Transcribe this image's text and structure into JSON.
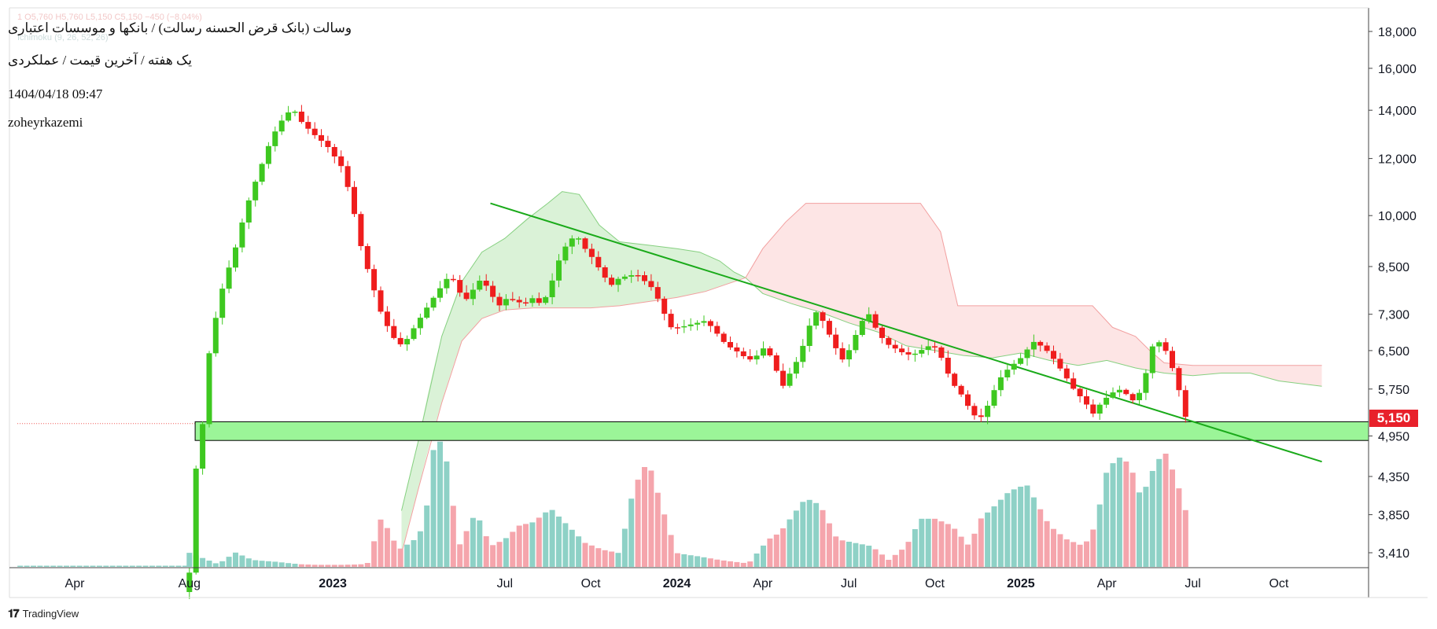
{
  "header": {
    "title": "وسالت (بانک قرض الحسنه رسالت) / بانکها و موسسات اعتباری",
    "subtitle": "یک هفته / آخرین قیمت / عملکردی",
    "timestamp": "1404/04/18 09:47",
    "author": "zoheyrkazemi",
    "ohlc_line": "1  O5,760  H5,760  L5,150  C5,150  −450 (−8.04%)",
    "indicator_line": "Ichimoku (9, 26, 52, 26)"
  },
  "brand": {
    "name": "TradingView",
    "icon": "tradingview-logo-icon"
  },
  "colors": {
    "up": "#3ec820",
    "down": "#ef1d1d",
    "vol_up": "#8ed1c6",
    "vol_down": "#f5a5ac",
    "trendline": "#1aaa1a",
    "support_zone": "#9bf598",
    "cloud_bull": "#cdeec9",
    "cloud_bear": "#fcdcdc",
    "price_tag": "#e8212b"
  },
  "current_price_label": "5,150",
  "chart_data": {
    "type": "candlestick",
    "timeframe": "1W",
    "yscale": "log",
    "ylim": [
      3100,
      19000
    ],
    "xrange_months": [
      -2,
      34
    ],
    "yticks": [
      {
        "value": 18000,
        "label": "18,000"
      },
      {
        "value": 16000,
        "label": "16,000"
      },
      {
        "value": 14000,
        "label": "14,000"
      },
      {
        "value": 12000,
        "label": "12,000"
      },
      {
        "value": 10000,
        "label": "10,000"
      },
      {
        "value": 8500,
        "label": "8,500"
      },
      {
        "value": 7300,
        "label": "7,300"
      },
      {
        "value": 6500,
        "label": "6,500"
      },
      {
        "value": 5750,
        "label": "5,750"
      },
      {
        "value": 4950,
        "label": "4,950"
      },
      {
        "value": 4350,
        "label": "4,350"
      },
      {
        "value": 3850,
        "label": "3,850"
      },
      {
        "value": 3410,
        "label": "3,410"
      }
    ],
    "xticks": [
      {
        "label": "Apr",
        "month": 0,
        "bold": false
      },
      {
        "label": "Aug",
        "month": 4,
        "bold": false
      },
      {
        "label": "2023",
        "month": 9,
        "bold": true
      },
      {
        "label": "Jul",
        "month": 15,
        "bold": false
      },
      {
        "label": "Oct",
        "month": 18,
        "bold": false
      },
      {
        "label": "2024",
        "month": 21,
        "bold": true
      },
      {
        "label": "Apr",
        "month": 24,
        "bold": false
      },
      {
        "label": "Jul",
        "month": 27,
        "bold": false
      },
      {
        "label": "Oct",
        "month": 30,
        "bold": false
      },
      {
        "label": "2025",
        "month": 33,
        "bold": true
      },
      {
        "label": "Apr",
        "month": 36,
        "bold": false
      },
      {
        "label": "Jul",
        "month": 39,
        "bold": false
      },
      {
        "label": "Oct",
        "month": 42,
        "bold": false
      }
    ],
    "price_path": [
      [
        4.0,
        3200
      ],
      [
        4.0,
        4000
      ],
      [
        4.4,
        4800
      ],
      [
        4.7,
        6500
      ],
      [
        5.1,
        7800
      ],
      [
        5.6,
        9000
      ],
      [
        6.0,
        10300
      ],
      [
        6.5,
        11700
      ],
      [
        6.9,
        12900
      ],
      [
        7.3,
        13700
      ],
      [
        7.6,
        14100
      ],
      [
        7.9,
        13500
      ],
      [
        8.3,
        13000
      ],
      [
        8.8,
        12500
      ],
      [
        9.3,
        11700
      ],
      [
        9.6,
        10700
      ],
      [
        10.0,
        9000
      ],
      [
        10.3,
        8200
      ],
      [
        10.7,
        7300
      ],
      [
        11.0,
        6900
      ],
      [
        11.3,
        6600
      ],
      [
        11.6,
        6750
      ],
      [
        13.1,
        8300
      ],
      [
        13.3,
        8000
      ],
      [
        13.6,
        7600
      ],
      [
        13.9,
        7900
      ],
      [
        14.2,
        8200
      ],
      [
        14.5,
        7800
      ],
      [
        14.8,
        7500
      ],
      [
        15.1,
        7700
      ],
      [
        15.4,
        7600
      ],
      [
        15.7,
        7550
      ],
      [
        16.0,
        7700
      ],
      [
        16.3,
        7500
      ],
      [
        16.6,
        8000
      ],
      [
        16.9,
        8700
      ],
      [
        17.2,
        9200
      ],
      [
        17.5,
        9400
      ],
      [
        17.8,
        9000
      ],
      [
        18.1,
        8700
      ],
      [
        18.4,
        8300
      ],
      [
        18.7,
        8000
      ],
      [
        19.0,
        8200
      ],
      [
        19.3,
        8250
      ],
      [
        19.6,
        8300
      ],
      [
        19.9,
        8100
      ],
      [
        20.2,
        7900
      ],
      [
        20.5,
        7400
      ],
      [
        20.8,
        7000
      ],
      [
        21.1,
        7000
      ],
      [
        21.4,
        7050
      ],
      [
        21.7,
        7100
      ],
      [
        22.0,
        7150
      ],
      [
        22.3,
        6950
      ],
      [
        22.6,
        6700
      ],
      [
        22.9,
        6550
      ],
      [
        23.2,
        6450
      ],
      [
        23.5,
        6300
      ],
      [
        23.8,
        6400
      ],
      [
        24.1,
        6600
      ],
      [
        24.4,
        6200
      ],
      [
        24.7,
        5800
      ],
      [
        25.0,
        6100
      ],
      [
        25.3,
        6400
      ],
      [
        25.6,
        7000
      ],
      [
        25.9,
        7400
      ],
      [
        26.2,
        7000
      ],
      [
        26.5,
        6600
      ],
      [
        26.8,
        6300
      ],
      [
        27.1,
        6600
      ],
      [
        27.4,
        7100
      ],
      [
        27.7,
        7300
      ],
      [
        28.0,
        6900
      ],
      [
        28.3,
        6650
      ],
      [
        28.6,
        6550
      ],
      [
        28.9,
        6450
      ],
      [
        29.2,
        6400
      ],
      [
        29.5,
        6500
      ],
      [
        29.8,
        6600
      ],
      [
        30.1,
        6550
      ],
      [
        30.4,
        6100
      ],
      [
        30.7,
        5800
      ],
      [
        31.0,
        5600
      ],
      [
        31.3,
        5300
      ],
      [
        31.6,
        5250
      ],
      [
        31.9,
        5500
      ],
      [
        32.2,
        5900
      ],
      [
        32.5,
        6100
      ],
      [
        32.8,
        6250
      ],
      [
        33.1,
        6400
      ],
      [
        33.4,
        6700
      ],
      [
        33.7,
        6600
      ],
      [
        34.0,
        6450
      ],
      [
        34.3,
        6200
      ],
      [
        34.6,
        5950
      ],
      [
        34.9,
        5700
      ],
      [
        35.2,
        5550
      ],
      [
        35.5,
        5300
      ],
      [
        35.8,
        5500
      ],
      [
        36.1,
        5650
      ],
      [
        36.4,
        5750
      ],
      [
        36.7,
        5650
      ],
      [
        37.0,
        5500
      ],
      [
        37.3,
        5900
      ],
      [
        37.6,
        6600
      ],
      [
        37.9,
        6700
      ],
      [
        38.2,
        6300
      ],
      [
        38.5,
        5760
      ],
      [
        38.8,
        5150
      ]
    ],
    "volume_path": [
      [
        4.0,
        4.1
      ],
      [
        5.0,
        0.8
      ],
      [
        5.6,
        4.2
      ],
      [
        6.2,
        2.0
      ],
      [
        7.0,
        1.5
      ],
      [
        7.8,
        0.8
      ],
      [
        8.4,
        0.6
      ],
      [
        9.4,
        0.6
      ],
      [
        10.2,
        0.8
      ],
      [
        10.7,
        14.5
      ],
      [
        11.3,
        5.0
      ],
      [
        11.8,
        7.5
      ],
      [
        12.2,
        12.0
      ],
      [
        12.6,
        40.0
      ],
      [
        13.0,
        30.0
      ],
      [
        13.4,
        6.0
      ],
      [
        14.0,
        16.0
      ],
      [
        14.5,
        6.0
      ],
      [
        15.0,
        8.0
      ],
      [
        15.5,
        12.0
      ],
      [
        16.0,
        13.0
      ],
      [
        16.6,
        17.0
      ],
      [
        17.2,
        12.0
      ],
      [
        17.8,
        7.0
      ],
      [
        18.4,
        5.0
      ],
      [
        19.0,
        4.0
      ],
      [
        19.5,
        23.0
      ],
      [
        20.0,
        31.0
      ],
      [
        20.5,
        17.0
      ],
      [
        21.0,
        4.0
      ],
      [
        21.8,
        3.0
      ],
      [
        22.5,
        2.0
      ],
      [
        23.5,
        1.0
      ],
      [
        24.2,
        8.0
      ],
      [
        24.6,
        10.0
      ],
      [
        25.0,
        14.5
      ],
      [
        25.5,
        20.0
      ],
      [
        26.0,
        18.0
      ],
      [
        26.6,
        8.0
      ],
      [
        27.2,
        7.0
      ],
      [
        27.8,
        6.0
      ],
      [
        28.4,
        2.0
      ],
      [
        29.0,
        6.0
      ],
      [
        29.5,
        14.0
      ],
      [
        30.0,
        14.0
      ],
      [
        30.6,
        12.0
      ],
      [
        31.2,
        6.0
      ],
      [
        31.6,
        14.0
      ],
      [
        32.0,
        17.0
      ],
      [
        32.6,
        22.0
      ],
      [
        33.2,
        24.0
      ],
      [
        33.6,
        18.0
      ],
      [
        34.0,
        12.0
      ],
      [
        34.6,
        8.0
      ],
      [
        35.2,
        6.0
      ],
      [
        35.6,
        12.0
      ],
      [
        36.0,
        28.0
      ],
      [
        36.4,
        32.0
      ],
      [
        36.8,
        30.0
      ],
      [
        37.2,
        20.0
      ],
      [
        37.6,
        28.0
      ],
      [
        38.0,
        34.0
      ],
      [
        38.4,
        26.0
      ],
      [
        38.8,
        15.0
      ]
    ],
    "ichimoku_span_a": [
      [
        11.4,
        3900
      ],
      [
        12.0,
        4900
      ],
      [
        12.8,
        6800
      ],
      [
        13.5,
        8100
      ],
      [
        14.2,
        8900
      ],
      [
        15.0,
        9300
      ],
      [
        15.8,
        9900
      ],
      [
        16.5,
        10400
      ],
      [
        17.0,
        10800
      ],
      [
        17.6,
        10700
      ],
      [
        18.3,
        9700
      ],
      [
        19.0,
        9200
      ],
      [
        20.0,
        9100
      ],
      [
        21.0,
        9000
      ],
      [
        21.8,
        8900
      ],
      [
        22.5,
        8650
      ],
      [
        23.0,
        8350
      ],
      [
        23.4,
        8200
      ],
      [
        24.0,
        7800
      ],
      [
        25.0,
        7550
      ],
      [
        26.0,
        7350
      ],
      [
        27.0,
        7100
      ],
      [
        28.0,
        6900
      ],
      [
        29.0,
        6600
      ],
      [
        30.0,
        6500
      ],
      [
        31.0,
        6400
      ],
      [
        32.0,
        6350
      ],
      [
        33.0,
        6450
      ],
      [
        34.0,
        6300
      ],
      [
        35.0,
        6200
      ],
      [
        36.0,
        6300
      ],
      [
        37.0,
        6150
      ],
      [
        38.0,
        6050
      ],
      [
        39.0,
        6000
      ],
      [
        40.0,
        6050
      ],
      [
        41.0,
        6050
      ],
      [
        42.0,
        5900
      ],
      [
        43.5,
        5800
      ]
    ],
    "ichimoku_span_b": [
      [
        11.4,
        3400
      ],
      [
        12.0,
        4200
      ],
      [
        12.8,
        5500
      ],
      [
        13.5,
        6700
      ],
      [
        14.2,
        7200
      ],
      [
        15.0,
        7400
      ],
      [
        16.0,
        7450
      ],
      [
        17.0,
        7450
      ],
      [
        18.0,
        7450
      ],
      [
        19.0,
        7500
      ],
      [
        20.0,
        7600
      ],
      [
        21.0,
        7700
      ],
      [
        22.0,
        7850
      ],
      [
        22.8,
        8050
      ],
      [
        23.4,
        8200
      ],
      [
        24.0,
        9000
      ],
      [
        24.8,
        9800
      ],
      [
        25.5,
        10400
      ],
      [
        26.5,
        10400
      ],
      [
        28.0,
        10400
      ],
      [
        29.5,
        10400
      ],
      [
        30.2,
        9500
      ],
      [
        30.8,
        7500
      ],
      [
        32.0,
        7500
      ],
      [
        34.0,
        7500
      ],
      [
        35.5,
        7500
      ],
      [
        36.2,
        7000
      ],
      [
        37.0,
        6800
      ],
      [
        37.5,
        6500
      ],
      [
        38.0,
        6250
      ],
      [
        39.0,
        6200
      ],
      [
        41.0,
        6200
      ],
      [
        43.5,
        6200
      ]
    ],
    "trendline": {
      "from": [
        14.5,
        10400
      ],
      "to": [
        43.5,
        4560
      ]
    },
    "support_zone": {
      "low": 4880,
      "high": 5180,
      "from_month": 4.2
    },
    "last_price": 5150,
    "last_price_line_from_month": -2
  }
}
